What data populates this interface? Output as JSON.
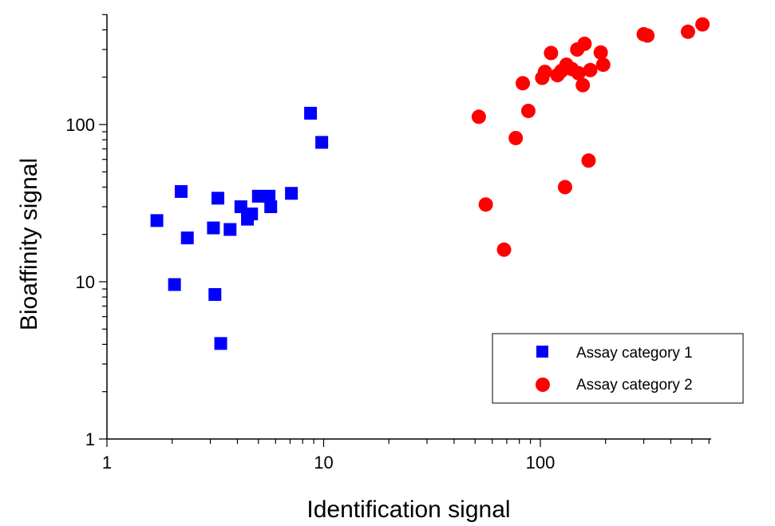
{
  "chart_data": {
    "type": "scatter",
    "title": "",
    "xlabel": "Identification signal",
    "ylabel": "Bioaffinity signal",
    "xscale": "log",
    "yscale": "log",
    "xlim": [
      1,
      600
    ],
    "ylim": [
      1,
      700
    ],
    "x_ticks": [
      {
        "value": 1,
        "label": "1"
      },
      {
        "value": 10,
        "label": "10"
      },
      {
        "value": 100,
        "label": "100"
      }
    ],
    "y_ticks": [
      {
        "value": 1,
        "label": "1"
      },
      {
        "value": 10,
        "label": "10"
      },
      {
        "value": 100,
        "label": "100"
      }
    ],
    "grid": false,
    "legend_position": "bottom-right",
    "colors": {
      "series1": "#0000ff",
      "series2": "#ff0000"
    },
    "series": [
      {
        "name": "Assay category 1",
        "marker": "square",
        "color": "#0000ff",
        "points": [
          [
            1.7,
            24.5
          ],
          [
            2.05,
            9.6
          ],
          [
            2.2,
            37.5
          ],
          [
            2.35,
            19.0
          ],
          [
            3.1,
            22.0
          ],
          [
            3.15,
            8.3
          ],
          [
            3.25,
            34.0
          ],
          [
            3.35,
            4.05
          ],
          [
            3.7,
            21.5
          ],
          [
            4.15,
            30.0
          ],
          [
            4.45,
            25.0
          ],
          [
            4.65,
            27.0
          ],
          [
            5.0,
            35.0
          ],
          [
            5.6,
            35.0
          ],
          [
            5.7,
            30.0
          ],
          [
            7.1,
            36.5
          ],
          [
            8.7,
            118.0
          ],
          [
            9.8,
            77.0
          ]
        ]
      },
      {
        "name": "Assay category 2",
        "marker": "circle",
        "color": "#ff0000",
        "points": [
          [
            52,
            112
          ],
          [
            56,
            31
          ],
          [
            68,
            16
          ],
          [
            77,
            82
          ],
          [
            83,
            183
          ],
          [
            88,
            122
          ],
          [
            102,
            198
          ],
          [
            105,
            216
          ],
          [
            112,
            285
          ],
          [
            120,
            206
          ],
          [
            125,
            219
          ],
          [
            130,
            40
          ],
          [
            132,
            240
          ],
          [
            140,
            225
          ],
          [
            148,
            300
          ],
          [
            150,
            212
          ],
          [
            157,
            178
          ],
          [
            160,
            326
          ],
          [
            167,
            59
          ],
          [
            170,
            222
          ],
          [
            190,
            287
          ],
          [
            195,
            240
          ],
          [
            300,
            375
          ],
          [
            312,
            368
          ],
          [
            480,
            389
          ],
          [
            560,
            433
          ]
        ]
      }
    ]
  }
}
